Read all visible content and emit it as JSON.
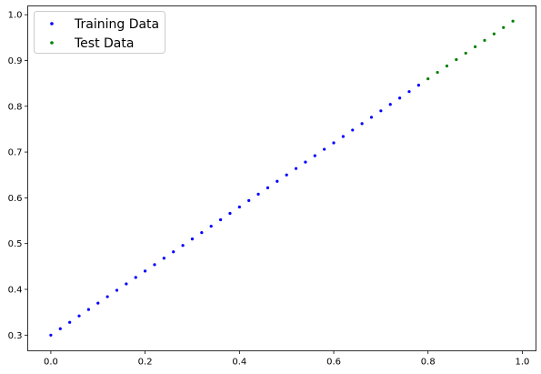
{
  "chart_data": {
    "type": "scatter",
    "xlim": [
      -0.049,
      1.029
    ],
    "ylim": [
      0.2658,
      1.0192
    ],
    "grid": false,
    "legend": "top-left",
    "x_ticks": [
      {
        "value": 0.0,
        "label": "0.0"
      },
      {
        "value": 0.2,
        "label": "0.2"
      },
      {
        "value": 0.4,
        "label": "0.4"
      },
      {
        "value": 0.6,
        "label": "0.6"
      },
      {
        "value": 0.8,
        "label": "0.8"
      },
      {
        "value": 1.0,
        "label": "1.0"
      }
    ],
    "y_ticks": [
      {
        "value": 0.3,
        "label": "0.3"
      },
      {
        "value": 0.4,
        "label": "0.4"
      },
      {
        "value": 0.5,
        "label": "0.5"
      },
      {
        "value": 0.6,
        "label": "0.6"
      },
      {
        "value": 0.7,
        "label": "0.7"
      },
      {
        "value": 0.8,
        "label": "0.8"
      },
      {
        "value": 0.9,
        "label": "0.9"
      },
      {
        "value": 1.0,
        "label": "1.0"
      }
    ],
    "series": [
      {
        "name": "Training Data",
        "color": "#0000ff",
        "x": [
          0.0,
          0.02,
          0.04,
          0.06,
          0.08,
          0.1,
          0.12,
          0.14,
          0.16,
          0.18,
          0.2,
          0.22,
          0.24,
          0.26,
          0.28,
          0.3,
          0.32,
          0.34,
          0.36,
          0.38,
          0.4,
          0.42,
          0.44,
          0.46,
          0.48,
          0.5,
          0.52,
          0.54,
          0.56,
          0.58,
          0.6,
          0.62,
          0.64,
          0.66,
          0.68,
          0.7,
          0.72,
          0.74,
          0.76,
          0.78
        ],
        "y": [
          0.3,
          0.314,
          0.328,
          0.342,
          0.356,
          0.37,
          0.384,
          0.398,
          0.412,
          0.426,
          0.44,
          0.454,
          0.468,
          0.482,
          0.496,
          0.51,
          0.524,
          0.538,
          0.552,
          0.566,
          0.58,
          0.594,
          0.608,
          0.622,
          0.636,
          0.65,
          0.664,
          0.678,
          0.692,
          0.706,
          0.72,
          0.734,
          0.748,
          0.762,
          0.776,
          0.79,
          0.804,
          0.818,
          0.832,
          0.846
        ]
      },
      {
        "name": "Test Data",
        "color": "#008000",
        "x": [
          0.8,
          0.82,
          0.84,
          0.86,
          0.88,
          0.9,
          0.92,
          0.94,
          0.96,
          0.98
        ],
        "y": [
          0.86,
          0.874,
          0.888,
          0.902,
          0.916,
          0.93,
          0.944,
          0.958,
          0.972,
          0.986
        ]
      }
    ]
  }
}
